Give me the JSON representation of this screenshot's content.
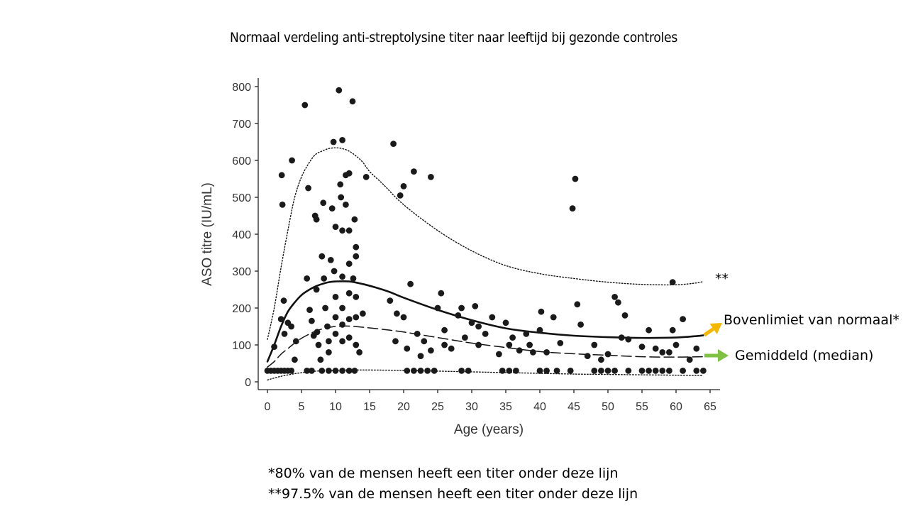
{
  "slide": {
    "title": "Normaal verdeling anti-streptolysine titer naar leeftijd bij gezonde controles",
    "footnote_1": "*80% van de mensen heeft een titer onder deze lijn",
    "footnote_2": "**97.5% van de mensen heeft een titer onder deze lijn"
  },
  "annotations": {
    "p97_label": "**",
    "upper_label": "Bovenlimiet van normaal*",
    "median_label": "Gemiddeld (median)",
    "upper_arrow_color": "#f5b800",
    "median_arrow_color": "#7fc241"
  },
  "chart_data": {
    "type": "scatter",
    "xlabel": "Age (years)",
    "ylabel": "ASO titre (IU/mL)",
    "xlim": [
      0,
      65
    ],
    "ylim": [
      0,
      800
    ],
    "xticks": [
      0,
      5,
      10,
      15,
      20,
      25,
      30,
      35,
      40,
      45,
      50,
      55,
      60,
      65
    ],
    "yticks": [
      0,
      100,
      200,
      300,
      400,
      500,
      600,
      700,
      800
    ],
    "grid": false,
    "points": [
      [
        0,
        30
      ],
      [
        0.5,
        30
      ],
      [
        1,
        30
      ],
      [
        1.5,
        30
      ],
      [
        2,
        30
      ],
      [
        2.5,
        30
      ],
      [
        3,
        30
      ],
      [
        3.5,
        30
      ],
      [
        5.8,
        30
      ],
      [
        6.5,
        30
      ],
      [
        8,
        30
      ],
      [
        9,
        30
      ],
      [
        10,
        30
      ],
      [
        11,
        30
      ],
      [
        12,
        30
      ],
      [
        12.8,
        30
      ],
      [
        20.5,
        30
      ],
      [
        21.5,
        30
      ],
      [
        22.5,
        30
      ],
      [
        23.5,
        30
      ],
      [
        24.5,
        30
      ],
      [
        28.5,
        30
      ],
      [
        29.5,
        30
      ],
      [
        34.5,
        30
      ],
      [
        35.5,
        30
      ],
      [
        36.5,
        30
      ],
      [
        40,
        30
      ],
      [
        41,
        30
      ],
      [
        42.5,
        30
      ],
      [
        44.5,
        30
      ],
      [
        48,
        30
      ],
      [
        49,
        30
      ],
      [
        50,
        30
      ],
      [
        51,
        30
      ],
      [
        53,
        30
      ],
      [
        55,
        30
      ],
      [
        56,
        30
      ],
      [
        57,
        30
      ],
      [
        58,
        30
      ],
      [
        59,
        30
      ],
      [
        61,
        30
      ],
      [
        63,
        30
      ],
      [
        64,
        30
      ],
      [
        1,
        95
      ],
      [
        2,
        170
      ],
      [
        2.4,
        220
      ],
      [
        2.2,
        480
      ],
      [
        2.1,
        560
      ],
      [
        2.5,
        130
      ],
      [
        3,
        160
      ],
      [
        3.5,
        150
      ],
      [
        3.6,
        600
      ],
      [
        4,
        60
      ],
      [
        4.2,
        110
      ],
      [
        5.5,
        750
      ],
      [
        5.8,
        280
      ],
      [
        6,
        525
      ],
      [
        6.2,
        195
      ],
      [
        6.5,
        165
      ],
      [
        6.8,
        125
      ],
      [
        7,
        450
      ],
      [
        7.2,
        440
      ],
      [
        7.2,
        250
      ],
      [
        7.3,
        135
      ],
      [
        7.5,
        100
      ],
      [
        7.8,
        60
      ],
      [
        8,
        340
      ],
      [
        8.2,
        485
      ],
      [
        8.3,
        280
      ],
      [
        8.5,
        200
      ],
      [
        8.8,
        150
      ],
      [
        9,
        110
      ],
      [
        9,
        80
      ],
      [
        9.3,
        330
      ],
      [
        9.5,
        470
      ],
      [
        9.7,
        650
      ],
      [
        9.8,
        300
      ],
      [
        10,
        420
      ],
      [
        10,
        230
      ],
      [
        10,
        175
      ],
      [
        10,
        130
      ],
      [
        10.5,
        790
      ],
      [
        10.7,
        535
      ],
      [
        10.8,
        500
      ],
      [
        11,
        410
      ],
      [
        11,
        655
      ],
      [
        11,
        285
      ],
      [
        11,
        200
      ],
      [
        11,
        155
      ],
      [
        11,
        110
      ],
      [
        11.5,
        560
      ],
      [
        11.5,
        480
      ],
      [
        12,
        565
      ],
      [
        12,
        410
      ],
      [
        12,
        320
      ],
      [
        12,
        240
      ],
      [
        12,
        170
      ],
      [
        12,
        120
      ],
      [
        12.5,
        760
      ],
      [
        12.6,
        280
      ],
      [
        12.8,
        440
      ],
      [
        13,
        365
      ],
      [
        13,
        340
      ],
      [
        13,
        230
      ],
      [
        13,
        175
      ],
      [
        13,
        100
      ],
      [
        13.5,
        80
      ],
      [
        14,
        185
      ],
      [
        14.5,
        555
      ],
      [
        18,
        220
      ],
      [
        18.5,
        645
      ],
      [
        18.8,
        110
      ],
      [
        19,
        185
      ],
      [
        19.5,
        505
      ],
      [
        20,
        175
      ],
      [
        20,
        530
      ],
      [
        20.5,
        90
      ],
      [
        21,
        265
      ],
      [
        21.5,
        570
      ],
      [
        22,
        130
      ],
      [
        22.5,
        70
      ],
      [
        23,
        110
      ],
      [
        24,
        555
      ],
      [
        24,
        85
      ],
      [
        25,
        200
      ],
      [
        25.5,
        240
      ],
      [
        26,
        140
      ],
      [
        26,
        100
      ],
      [
        27,
        90
      ],
      [
        28,
        180
      ],
      [
        28.5,
        200
      ],
      [
        29,
        120
      ],
      [
        30,
        160
      ],
      [
        30.5,
        205
      ],
      [
        31,
        150
      ],
      [
        31,
        100
      ],
      [
        32,
        130
      ],
      [
        33,
        175
      ],
      [
        34,
        75
      ],
      [
        35,
        160
      ],
      [
        35.5,
        100
      ],
      [
        36,
        120
      ],
      [
        37,
        85
      ],
      [
        38,
        130
      ],
      [
        38.5,
        100
      ],
      [
        39,
        80
      ],
      [
        40,
        140
      ],
      [
        40.2,
        190
      ],
      [
        41,
        80
      ],
      [
        42,
        175
      ],
      [
        43,
        105
      ],
      [
        44.8,
        470
      ],
      [
        45.2,
        550
      ],
      [
        45.5,
        210
      ],
      [
        46,
        155
      ],
      [
        47,
        70
      ],
      [
        48,
        100
      ],
      [
        49,
        60
      ],
      [
        50,
        75
      ],
      [
        51,
        230
      ],
      [
        51.5,
        215
      ],
      [
        52,
        120
      ],
      [
        52.5,
        180
      ],
      [
        53,
        115
      ],
      [
        55,
        95
      ],
      [
        56,
        140
      ],
      [
        57,
        90
      ],
      [
        58,
        80
      ],
      [
        59,
        80
      ],
      [
        59.5,
        270
      ],
      [
        59.5,
        140
      ],
      [
        60,
        100
      ],
      [
        61,
        170
      ],
      [
        62,
        60
      ],
      [
        63,
        90
      ]
    ],
    "curves": [
      {
        "style": "dotted",
        "points": [
          [
            0,
            115
          ],
          [
            1,
            200
          ],
          [
            2,
            310
          ],
          [
            3,
            410
          ],
          [
            4,
            500
          ],
          [
            5,
            555
          ],
          [
            6,
            590
          ],
          [
            7,
            615
          ],
          [
            8,
            625
          ],
          [
            9,
            632
          ],
          [
            10,
            634
          ],
          [
            11,
            632
          ],
          [
            12,
            625
          ],
          [
            13,
            612
          ],
          [
            14,
            595
          ],
          [
            15,
            570
          ],
          [
            17,
            535
          ],
          [
            20,
            480
          ],
          [
            25,
            410
          ],
          [
            30,
            355
          ],
          [
            35,
            315
          ],
          [
            40,
            293
          ],
          [
            45,
            280
          ],
          [
            50,
            270
          ],
          [
            55,
            264
          ],
          [
            60,
            263
          ],
          [
            63,
            268
          ],
          [
            64,
            272
          ]
        ]
      },
      {
        "style": "solid",
        "points": [
          [
            0,
            55
          ],
          [
            1,
            100
          ],
          [
            2,
            150
          ],
          [
            3,
            190
          ],
          [
            4,
            215
          ],
          [
            5,
            235
          ],
          [
            6,
            248
          ],
          [
            7,
            258
          ],
          [
            8,
            265
          ],
          [
            9,
            270
          ],
          [
            10,
            272
          ],
          [
            12,
            272
          ],
          [
            14,
            265
          ],
          [
            16,
            255
          ],
          [
            18,
            243
          ],
          [
            20,
            228
          ],
          [
            25,
            195
          ],
          [
            30,
            167
          ],
          [
            35,
            145
          ],
          [
            40,
            133
          ],
          [
            45,
            125
          ],
          [
            50,
            121
          ],
          [
            55,
            119
          ],
          [
            60,
            120
          ],
          [
            63,
            124
          ],
          [
            64,
            126
          ]
        ]
      },
      {
        "style": "dashed",
        "points": [
          [
            0,
            40
          ],
          [
            1,
            55
          ],
          [
            2,
            75
          ],
          [
            3,
            90
          ],
          [
            4,
            105
          ],
          [
            5,
            118
          ],
          [
            6,
            128
          ],
          [
            7,
            137
          ],
          [
            8,
            143
          ],
          [
            9,
            147
          ],
          [
            10,
            150
          ],
          [
            12,
            151
          ],
          [
            14,
            148
          ],
          [
            17,
            142
          ],
          [
            20,
            135
          ],
          [
            25,
            120
          ],
          [
            30,
            105
          ],
          [
            35,
            93
          ],
          [
            40,
            82
          ],
          [
            45,
            76
          ],
          [
            50,
            72
          ],
          [
            55,
            68
          ],
          [
            60,
            67
          ],
          [
            64,
            68
          ]
        ]
      },
      {
        "style": "dotted",
        "points": [
          [
            0,
            5
          ],
          [
            2,
            15
          ],
          [
            4,
            22
          ],
          [
            6,
            27
          ],
          [
            8,
            30
          ],
          [
            10,
            31
          ],
          [
            12,
            32
          ],
          [
            15,
            32
          ],
          [
            20,
            31
          ],
          [
            25,
            29
          ],
          [
            30,
            27
          ],
          [
            35,
            25
          ],
          [
            40,
            23
          ],
          [
            45,
            21
          ],
          [
            50,
            20
          ],
          [
            55,
            19
          ],
          [
            60,
            18
          ],
          [
            64,
            17
          ]
        ]
      }
    ]
  }
}
